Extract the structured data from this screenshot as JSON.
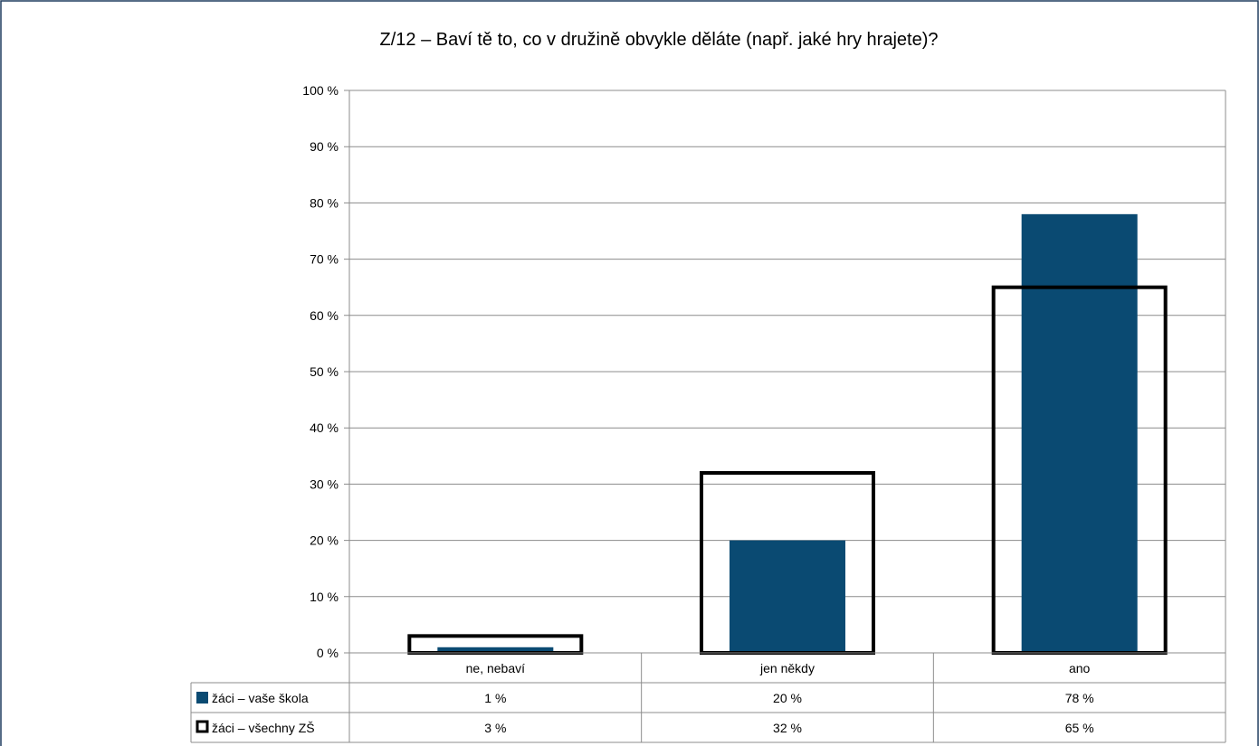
{
  "chart_data": {
    "type": "bar",
    "title": "Z/12 – Baví tě to, co v družině obvykle děláte (např. jaké hry hrajete)?",
    "categories": [
      "ne, nebaví",
      "jen někdy",
      "ano"
    ],
    "ylim": [
      0,
      100
    ],
    "yticks": [
      0,
      10,
      20,
      30,
      40,
      50,
      60,
      70,
      80,
      90,
      100
    ],
    "ytick_labels": [
      "0 %",
      "10 %",
      "20 %",
      "30 %",
      "40 %",
      "50 %",
      "60 %",
      "70 %",
      "80 %",
      "90 %",
      "100 %"
    ],
    "grid": true,
    "series": [
      {
        "name": "žáci – vaše škola",
        "values": [
          1,
          20,
          78
        ],
        "value_labels": [
          "1 %",
          "20 %",
          "78 %"
        ],
        "style": "filled",
        "color": "#0a4a72"
      },
      {
        "name": "žáci – všechny ZŠ",
        "values": [
          3,
          32,
          65
        ],
        "value_labels": [
          "3 %",
          "32 %",
          "65 %"
        ],
        "style": "outline",
        "color": "#000000"
      }
    ],
    "legend": "data-table-below"
  },
  "colors": {
    "frame_border": "#1f3c5e",
    "grid": "#8c8c8c",
    "filled_bar": "#0a4a72",
    "outline_bar": "#000000"
  }
}
